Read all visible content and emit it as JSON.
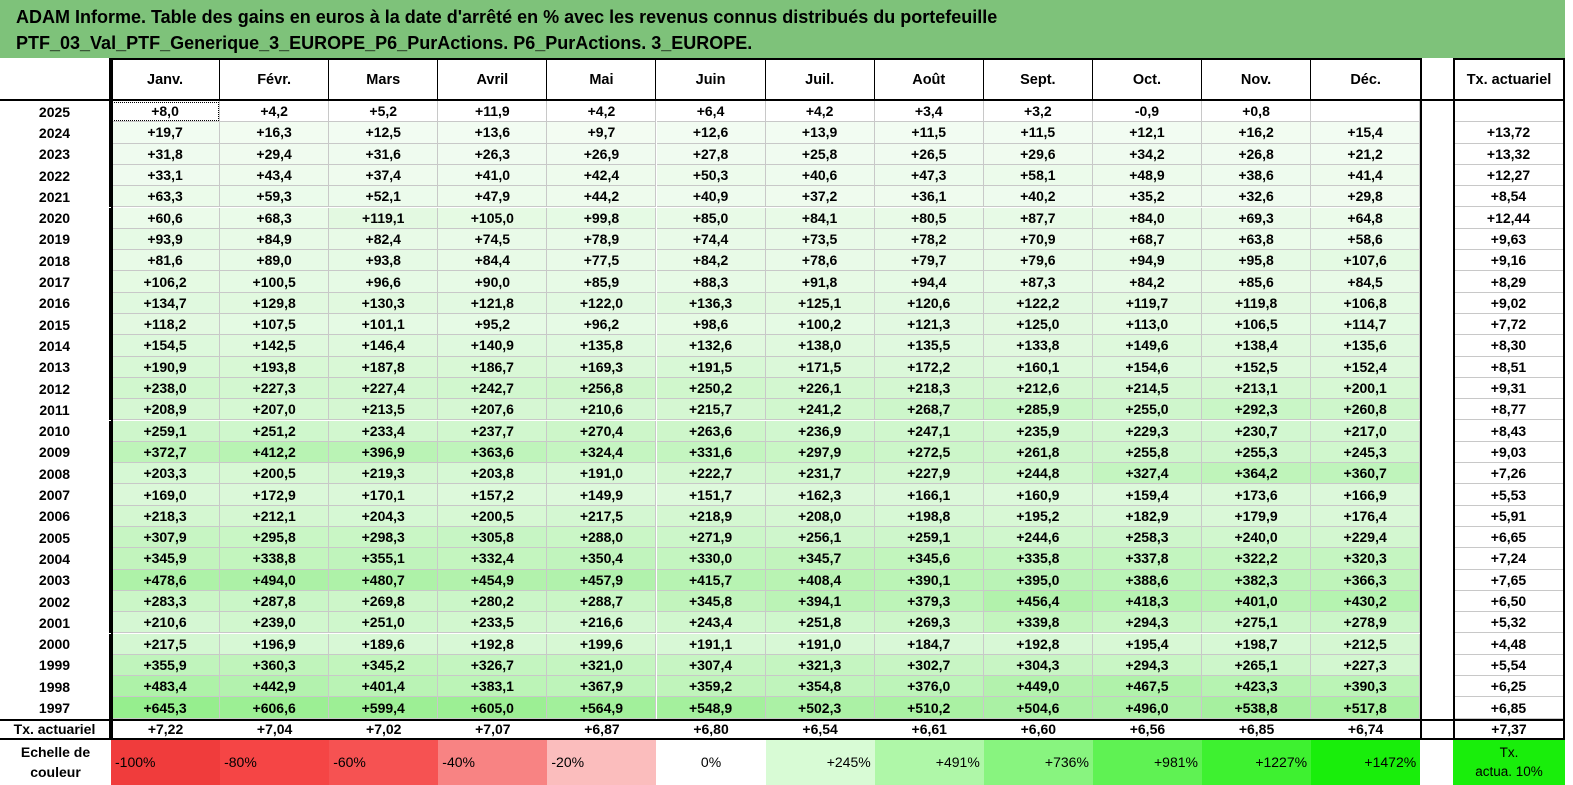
{
  "title": {
    "line1": "ADAM Informe. Table des gains en euros à la date d'arrêté en % avec les revenus connus distribués du portefeuille",
    "line2": "PTF_03_Val_PTF_Generique_3_EUROPE_P6_PurActions. P6_PurActions. 3_EUROPE."
  },
  "colors": {
    "title_bg": "#7ec27a",
    "max_green": "#00ff00",
    "neg_red": "#ff0000"
  },
  "table": {
    "months": [
      "Janv.",
      "Févr.",
      "Mars",
      "Avril",
      "Mai",
      "Juin",
      "Juil.",
      "Août",
      "Sept.",
      "Oct.",
      "Nov.",
      "Déc."
    ],
    "rate_header": "Tx. actuariel",
    "rows": [
      {
        "year": "2025",
        "values": [
          "+8,0",
          "+4,2",
          "+5,2",
          "+11,9",
          "+4,2",
          "+6,4",
          "+4,2",
          "+3,4",
          "+3,2",
          "-0,9",
          "+0,8",
          ""
        ],
        "rate": ""
      },
      {
        "year": "2024",
        "values": [
          "+19,7",
          "+16,3",
          "+12,5",
          "+13,6",
          "+9,7",
          "+12,6",
          "+13,9",
          "+11,5",
          "+11,5",
          "+12,1",
          "+16,2",
          "+15,4"
        ],
        "rate": "+13,72"
      },
      {
        "year": "2023",
        "values": [
          "+31,8",
          "+29,4",
          "+31,6",
          "+26,3",
          "+26,9",
          "+27,8",
          "+25,8",
          "+26,5",
          "+29,6",
          "+34,2",
          "+26,8",
          "+21,2"
        ],
        "rate": "+13,32"
      },
      {
        "year": "2022",
        "values": [
          "+33,1",
          "+43,4",
          "+37,4",
          "+41,0",
          "+42,4",
          "+50,3",
          "+40,6",
          "+47,3",
          "+58,1",
          "+48,9",
          "+38,6",
          "+41,4"
        ],
        "rate": "+12,27"
      },
      {
        "year": "2021",
        "values": [
          "+63,3",
          "+59,3",
          "+52,1",
          "+47,9",
          "+44,2",
          "+40,9",
          "+37,2",
          "+36,1",
          "+40,2",
          "+35,2",
          "+32,6",
          "+29,8"
        ],
        "rate": "+8,54"
      },
      {
        "year": "2020",
        "values": [
          "+60,6",
          "+68,3",
          "+119,1",
          "+105,0",
          "+99,8",
          "+85,0",
          "+84,1",
          "+80,5",
          "+87,7",
          "+84,0",
          "+69,3",
          "+64,8"
        ],
        "rate": "+12,44"
      },
      {
        "year": "2019",
        "values": [
          "+93,9",
          "+84,9",
          "+82,4",
          "+74,5",
          "+78,9",
          "+74,4",
          "+73,5",
          "+78,2",
          "+70,9",
          "+68,7",
          "+63,8",
          "+58,6"
        ],
        "rate": "+9,63"
      },
      {
        "year": "2018",
        "values": [
          "+81,6",
          "+89,0",
          "+93,8",
          "+84,4",
          "+77,5",
          "+84,2",
          "+78,6",
          "+79,7",
          "+79,6",
          "+94,9",
          "+95,8",
          "+107,6"
        ],
        "rate": "+9,16"
      },
      {
        "year": "2017",
        "values": [
          "+106,2",
          "+100,5",
          "+96,6",
          "+90,0",
          "+85,9",
          "+88,3",
          "+91,8",
          "+94,4",
          "+87,3",
          "+84,2",
          "+85,6",
          "+84,5"
        ],
        "rate": "+8,29"
      },
      {
        "year": "2016",
        "values": [
          "+134,7",
          "+129,8",
          "+130,3",
          "+121,8",
          "+122,0",
          "+136,3",
          "+125,1",
          "+120,6",
          "+122,2",
          "+119,7",
          "+119,8",
          "+106,8"
        ],
        "rate": "+9,02"
      },
      {
        "year": "2015",
        "values": [
          "+118,2",
          "+107,5",
          "+101,1",
          "+95,2",
          "+96,2",
          "+98,6",
          "+100,2",
          "+121,3",
          "+125,0",
          "+113,0",
          "+106,5",
          "+114,7"
        ],
        "rate": "+7,72"
      },
      {
        "year": "2014",
        "values": [
          "+154,5",
          "+142,5",
          "+146,4",
          "+140,9",
          "+135,8",
          "+132,6",
          "+138,0",
          "+135,5",
          "+133,8",
          "+149,6",
          "+138,4",
          "+135,6"
        ],
        "rate": "+8,30"
      },
      {
        "year": "2013",
        "values": [
          "+190,9",
          "+193,8",
          "+187,8",
          "+186,7",
          "+169,3",
          "+191,5",
          "+171,5",
          "+172,2",
          "+160,1",
          "+154,6",
          "+152,5",
          "+152,4"
        ],
        "rate": "+8,51"
      },
      {
        "year": "2012",
        "values": [
          "+238,0",
          "+227,3",
          "+227,4",
          "+242,7",
          "+256,8",
          "+250,2",
          "+226,1",
          "+218,3",
          "+212,6",
          "+214,5",
          "+213,1",
          "+200,1"
        ],
        "rate": "+9,31"
      },
      {
        "year": "2011",
        "values": [
          "+208,9",
          "+207,0",
          "+213,5",
          "+207,6",
          "+210,6",
          "+215,7",
          "+241,2",
          "+268,7",
          "+285,9",
          "+255,0",
          "+292,3",
          "+260,8"
        ],
        "rate": "+8,77"
      },
      {
        "year": "2010",
        "values": [
          "+259,1",
          "+251,2",
          "+233,4",
          "+237,7",
          "+270,4",
          "+263,6",
          "+236,9",
          "+247,1",
          "+235,9",
          "+229,3",
          "+230,7",
          "+217,0"
        ],
        "rate": "+8,43"
      },
      {
        "year": "2009",
        "values": [
          "+372,7",
          "+412,2",
          "+396,9",
          "+363,6",
          "+324,4",
          "+331,6",
          "+297,9",
          "+272,5",
          "+261,8",
          "+255,8",
          "+255,3",
          "+245,3"
        ],
        "rate": "+9,03"
      },
      {
        "year": "2008",
        "values": [
          "+203,3",
          "+200,5",
          "+219,3",
          "+203,8",
          "+191,0",
          "+222,7",
          "+231,7",
          "+227,9",
          "+244,8",
          "+327,4",
          "+364,2",
          "+360,7"
        ],
        "rate": "+7,26"
      },
      {
        "year": "2007",
        "values": [
          "+169,0",
          "+172,9",
          "+170,1",
          "+157,2",
          "+149,9",
          "+151,7",
          "+162,3",
          "+166,1",
          "+160,9",
          "+159,4",
          "+173,6",
          "+166,9"
        ],
        "rate": "+5,53"
      },
      {
        "year": "2006",
        "values": [
          "+218,3",
          "+212,1",
          "+204,3",
          "+200,5",
          "+217,5",
          "+218,9",
          "+208,0",
          "+198,8",
          "+195,2",
          "+182,9",
          "+179,9",
          "+176,4"
        ],
        "rate": "+5,91"
      },
      {
        "year": "2005",
        "values": [
          "+307,9",
          "+295,8",
          "+298,3",
          "+305,8",
          "+288,0",
          "+271,9",
          "+256,1",
          "+259,1",
          "+244,6",
          "+258,3",
          "+240,0",
          "+229,4"
        ],
        "rate": "+6,65"
      },
      {
        "year": "2004",
        "values": [
          "+345,9",
          "+338,8",
          "+355,1",
          "+332,4",
          "+350,4",
          "+330,0",
          "+345,7",
          "+345,6",
          "+335,8",
          "+337,8",
          "+322,2",
          "+320,3"
        ],
        "rate": "+7,24"
      },
      {
        "year": "2003",
        "values": [
          "+478,6",
          "+494,0",
          "+480,7",
          "+454,9",
          "+457,9",
          "+415,7",
          "+408,4",
          "+390,1",
          "+395,0",
          "+388,6",
          "+382,3",
          "+366,3"
        ],
        "rate": "+7,65"
      },
      {
        "year": "2002",
        "values": [
          "+283,3",
          "+287,8",
          "+269,8",
          "+280,2",
          "+288,7",
          "+345,8",
          "+394,1",
          "+379,3",
          "+456,4",
          "+418,3",
          "+401,0",
          "+430,2"
        ],
        "rate": "+6,50"
      },
      {
        "year": "2001",
        "values": [
          "+210,6",
          "+239,0",
          "+251,0",
          "+233,5",
          "+216,6",
          "+243,4",
          "+251,8",
          "+269,3",
          "+339,8",
          "+294,3",
          "+275,1",
          "+278,9"
        ],
        "rate": "+5,32"
      },
      {
        "year": "2000",
        "values": [
          "+217,5",
          "+196,9",
          "+189,6",
          "+192,8",
          "+199,6",
          "+191,1",
          "+191,0",
          "+184,7",
          "+192,8",
          "+195,4",
          "+198,7",
          "+212,5"
        ],
        "rate": "+4,48"
      },
      {
        "year": "1999",
        "values": [
          "+355,9",
          "+360,3",
          "+345,2",
          "+326,7",
          "+321,0",
          "+307,4",
          "+321,3",
          "+302,7",
          "+304,3",
          "+294,3",
          "+265,1",
          "+227,3"
        ],
        "rate": "+5,54"
      },
      {
        "year": "1998",
        "values": [
          "+483,4",
          "+442,9",
          "+401,4",
          "+383,1",
          "+367,9",
          "+359,2",
          "+354,8",
          "+376,0",
          "+449,0",
          "+467,5",
          "+423,3",
          "+390,3"
        ],
        "rate": "+6,25"
      },
      {
        "year": "1997",
        "values": [
          "+645,3",
          "+606,6",
          "+599,4",
          "+605,0",
          "+564,9",
          "+548,9",
          "+502,3",
          "+510,2",
          "+504,6",
          "+496,0",
          "+538,8",
          "+517,8"
        ],
        "rate": "+6,85"
      }
    ],
    "footer": {
      "label": "Tx. actuariel",
      "values": [
        "+7,22",
        "+7,04",
        "+7,02",
        "+7,07",
        "+6,87",
        "+6,80",
        "+6,54",
        "+6,61",
        "+6,60",
        "+6,56",
        "+6,85",
        "+6,74"
      ],
      "rate": "+7,37"
    }
  },
  "scale": {
    "label_line1": "Echelle de",
    "label_line2": "couleur",
    "steps": [
      {
        "text": "-100%",
        "color": "#f03c3c",
        "align": "l"
      },
      {
        "text": "-80%",
        "color": "#f54545",
        "align": "l"
      },
      {
        "text": "-60%",
        "color": "#f65252",
        "align": "l"
      },
      {
        "text": "-40%",
        "color": "#f88383",
        "align": "l"
      },
      {
        "text": "-20%",
        "color": "#fbbdbd",
        "align": "l"
      },
      {
        "text": "0%",
        "color": "#ffffff",
        "align": "c"
      },
      {
        "text": "+245%",
        "color": "#d8fbd5",
        "align": "r"
      },
      {
        "text": "+491%",
        "color": "#aff7a8",
        "align": "r"
      },
      {
        "text": "+736%",
        "color": "#88f47f",
        "align": "r"
      },
      {
        "text": "+981%",
        "color": "#5ff253",
        "align": "r"
      },
      {
        "text": "+1227%",
        "color": "#3ef130",
        "align": "r"
      },
      {
        "text": "+1472%",
        "color": "#19ee0b",
        "align": "r"
      }
    ],
    "rate_line1": "Tx.",
    "rate_line2": "actua. 10%",
    "rate_color": "#19ee0b"
  }
}
